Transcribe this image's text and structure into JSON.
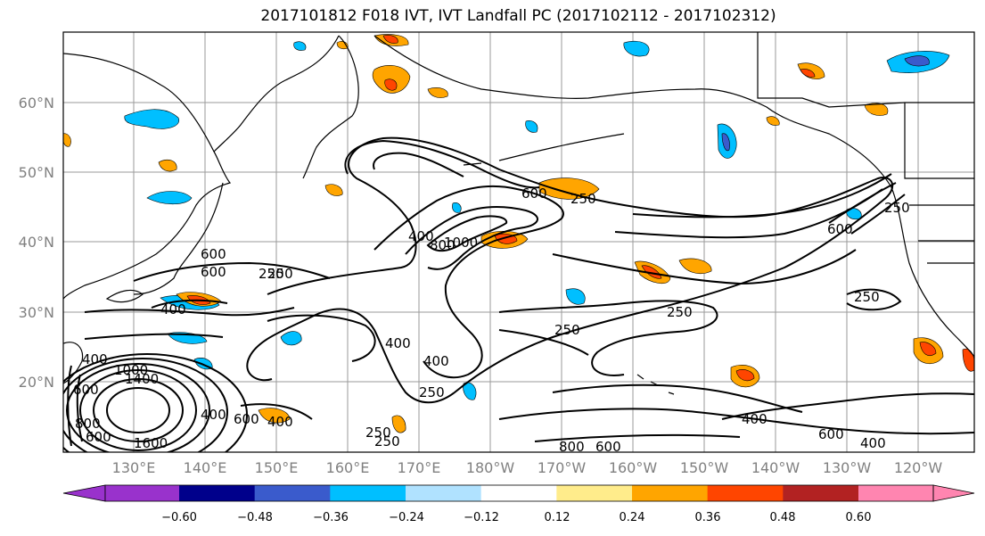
{
  "title": "2017101812 F018 IVT, IVT Landfall PC (2017102112 - 2017102312)",
  "lat_labels": [
    "20°N",
    "30°N",
    "40°N",
    "50°N",
    "60°N"
  ],
  "lon_labels": [
    "130°E",
    "140°E",
    "150°E",
    "160°E",
    "170°E",
    "180°W",
    "170°W",
    "160°W",
    "150°W",
    "140°W",
    "130°W",
    "120°W"
  ],
  "colorbar": {
    "colors": [
      "#9932cc",
      "#00008b",
      "#3a5bcc",
      "#00bfff",
      "#b0e2ff",
      "#ffffff",
      "#ffec8b",
      "#ffa500",
      "#ff4500",
      "#b22222",
      "#ff85b0"
    ],
    "tick_labels": [
      "−0.60",
      "−0.48",
      "−0.36",
      "−0.24",
      "−0.12",
      "0.12",
      "0.24",
      "0.36",
      "0.48",
      "0.60"
    ]
  },
  "contour_labels": [
    "250",
    "400",
    "600",
    "800",
    "1000",
    "250",
    "400",
    "600",
    "250",
    "250",
    "400",
    "250",
    "250",
    "600",
    "250",
    "400",
    "600",
    "800",
    "250",
    "600",
    "400",
    "250",
    "400",
    "600",
    "400",
    "1000",
    "1400",
    "1600",
    "600",
    "400",
    "600",
    "800",
    "600",
    "400",
    "250"
  ]
}
